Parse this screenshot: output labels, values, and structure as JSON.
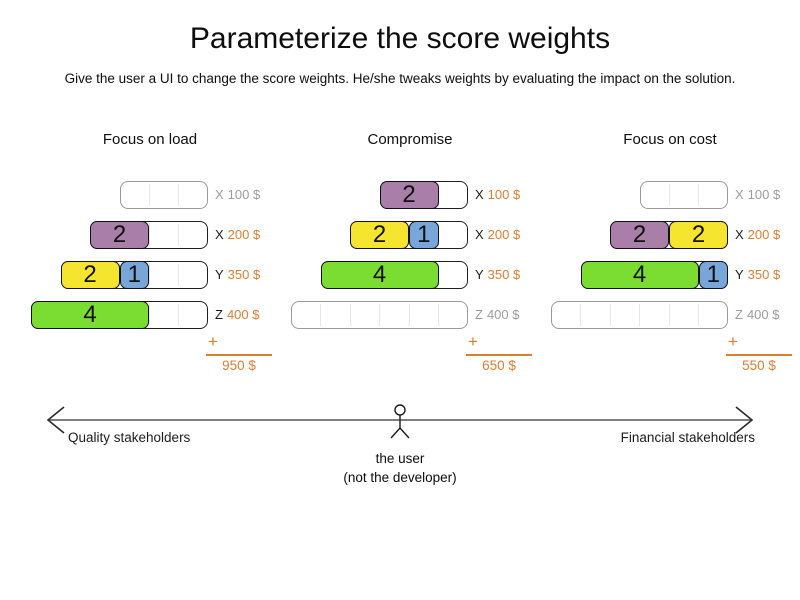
{
  "title": "Parameterize the score weights",
  "subtitle": "Give the user a UI to change the score weights. He/she tweaks weights by evaluating the impact on the solution.",
  "colors": {
    "orange": "#e07e30",
    "inactive_gray": "#9c9c9c",
    "purple": "#a97fa9",
    "yellow": "#f6e52e",
    "blue": "#78a6d8",
    "green": "#7bdc32"
  },
  "plus_sign": "+",
  "scenarios": [
    {
      "heading": "Focus on load",
      "total": "950 $",
      "rows": [
        {
          "resource": "X",
          "cost": "100 $",
          "capacity": 3,
          "active": false,
          "blocks": []
        },
        {
          "resource": "X",
          "cost": "200 $",
          "capacity": 4,
          "active": true,
          "blocks": [
            {
              "value": "2",
              "color": "purple",
              "size": 2
            }
          ]
        },
        {
          "resource": "Y",
          "cost": "350 $",
          "capacity": 5,
          "active": true,
          "blocks": [
            {
              "value": "2",
              "color": "yellow",
              "size": 2
            },
            {
              "value": "1",
              "color": "blue",
              "size": 1
            }
          ]
        },
        {
          "resource": "Z",
          "cost": "400 $",
          "capacity": 6,
          "active": true,
          "blocks": [
            {
              "value": "4",
              "color": "green",
              "size": 4
            }
          ]
        }
      ]
    },
    {
      "heading": "Compromise",
      "total": "650 $",
      "rows": [
        {
          "resource": "X",
          "cost": "100 $",
          "capacity": 3,
          "active": true,
          "blocks": [
            {
              "value": "2",
              "color": "purple",
              "size": 2
            }
          ]
        },
        {
          "resource": "X",
          "cost": "200 $",
          "capacity": 4,
          "active": true,
          "blocks": [
            {
              "value": "2",
              "color": "yellow",
              "size": 2
            },
            {
              "value": "1",
              "color": "blue",
              "size": 1
            }
          ]
        },
        {
          "resource": "Y",
          "cost": "350 $",
          "capacity": 5,
          "active": true,
          "blocks": [
            {
              "value": "4",
              "color": "green",
              "size": 4
            }
          ]
        },
        {
          "resource": "Z",
          "cost": "400 $",
          "capacity": 6,
          "active": false,
          "blocks": []
        }
      ]
    },
    {
      "heading": "Focus on cost",
      "total": "550 $",
      "rows": [
        {
          "resource": "X",
          "cost": "100 $",
          "capacity": 3,
          "active": false,
          "blocks": []
        },
        {
          "resource": "X",
          "cost": "200 $",
          "capacity": 4,
          "active": true,
          "blocks": [
            {
              "value": "2",
              "color": "purple",
              "size": 2
            },
            {
              "value": "2",
              "color": "yellow",
              "size": 2
            }
          ]
        },
        {
          "resource": "Y",
          "cost": "350 $",
          "capacity": 5,
          "active": true,
          "blocks": [
            {
              "value": "4",
              "color": "green",
              "size": 4
            },
            {
              "value": "1",
              "color": "blue",
              "size": 1
            }
          ]
        },
        {
          "resource": "Z",
          "cost": "400 $",
          "capacity": 6,
          "active": false,
          "blocks": []
        }
      ]
    }
  ],
  "axis": {
    "left_label": "Quality stakeholders",
    "right_label": "Financial stakeholders",
    "caption_line1": "the user",
    "caption_line2": "(not the developer)"
  }
}
